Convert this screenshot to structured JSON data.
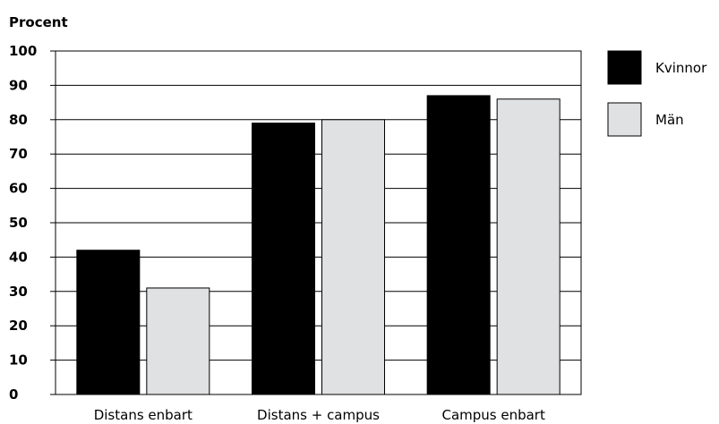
{
  "chart_data": {
    "type": "bar",
    "ylabel": "Procent",
    "ylim": [
      0,
      100
    ],
    "yticks": [
      0,
      10,
      20,
      30,
      40,
      50,
      60,
      70,
      80,
      90,
      100
    ],
    "grid": true,
    "legend_position": "right",
    "categories": [
      "Distans enbart",
      "Distans + campus",
      "Campus enbart"
    ],
    "series": [
      {
        "name": "Kvinnor",
        "color": "#000000",
        "values": [
          42,
          79,
          87
        ]
      },
      {
        "name": "Män",
        "color": "#e0e1e3",
        "values": [
          31,
          80,
          86
        ]
      }
    ]
  }
}
